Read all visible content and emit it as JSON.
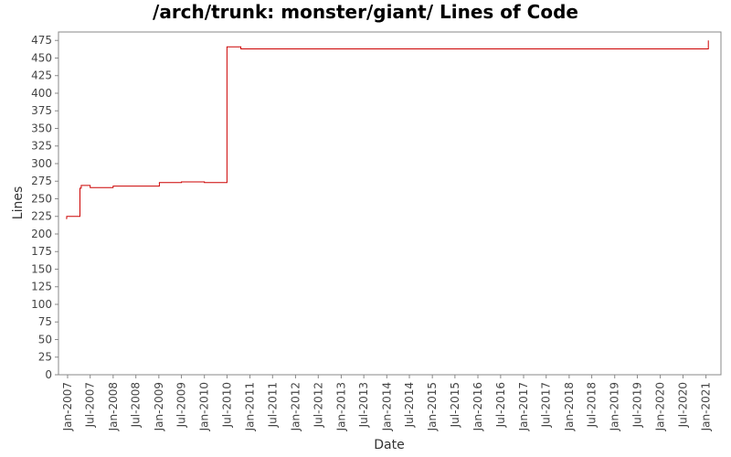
{
  "chart_data": {
    "type": "line",
    "title": "/arch/trunk: monster/giant/ Lines of Code",
    "xlabel": "Date",
    "ylabel": "Lines",
    "ylim": [
      0,
      487
    ],
    "xlim": [
      "2006-10-20",
      "2021-05-01"
    ],
    "yticks": [
      0,
      25,
      50,
      75,
      100,
      125,
      150,
      175,
      200,
      225,
      250,
      275,
      300,
      325,
      350,
      375,
      400,
      425,
      450,
      475
    ],
    "xticks": [
      "Jan-2007",
      "Jul-2007",
      "Jan-2008",
      "Jul-2008",
      "Jan-2009",
      "Jul-2009",
      "Jan-2010",
      "Jul-2010",
      "Jan-2011",
      "Jul-2011",
      "Jan-2012",
      "Jul-2012",
      "Jan-2013",
      "Jul-2013",
      "Jan-2014",
      "Jul-2014",
      "Jan-2015",
      "Jul-2015",
      "Jan-2016",
      "Jul-2016",
      "Jan-2017",
      "Jul-2017",
      "Jan-2018",
      "Jul-2018",
      "Jan-2019",
      "Jul-2019",
      "Jan-2020",
      "Jul-2020",
      "Jan-2021"
    ],
    "grid": false,
    "line_color": "#cc0000",
    "series": [
      {
        "step": true,
        "x": [
          "2006-12-20",
          "2006-12-25",
          "2007-04-10",
          "2007-04-20",
          "2007-04-25",
          "2007-07-01",
          "2008-01-01",
          "2009-01-05",
          "2009-07-01",
          "2010-01-01",
          "2010-07-01",
          "2010-10-15",
          "2010-10-20",
          "2021-01-10",
          "2021-01-20"
        ],
        "y": [
          222,
          225,
          265,
          269,
          269,
          266,
          268,
          273,
          274,
          273,
          466,
          466,
          463,
          463,
          475
        ]
      }
    ]
  }
}
